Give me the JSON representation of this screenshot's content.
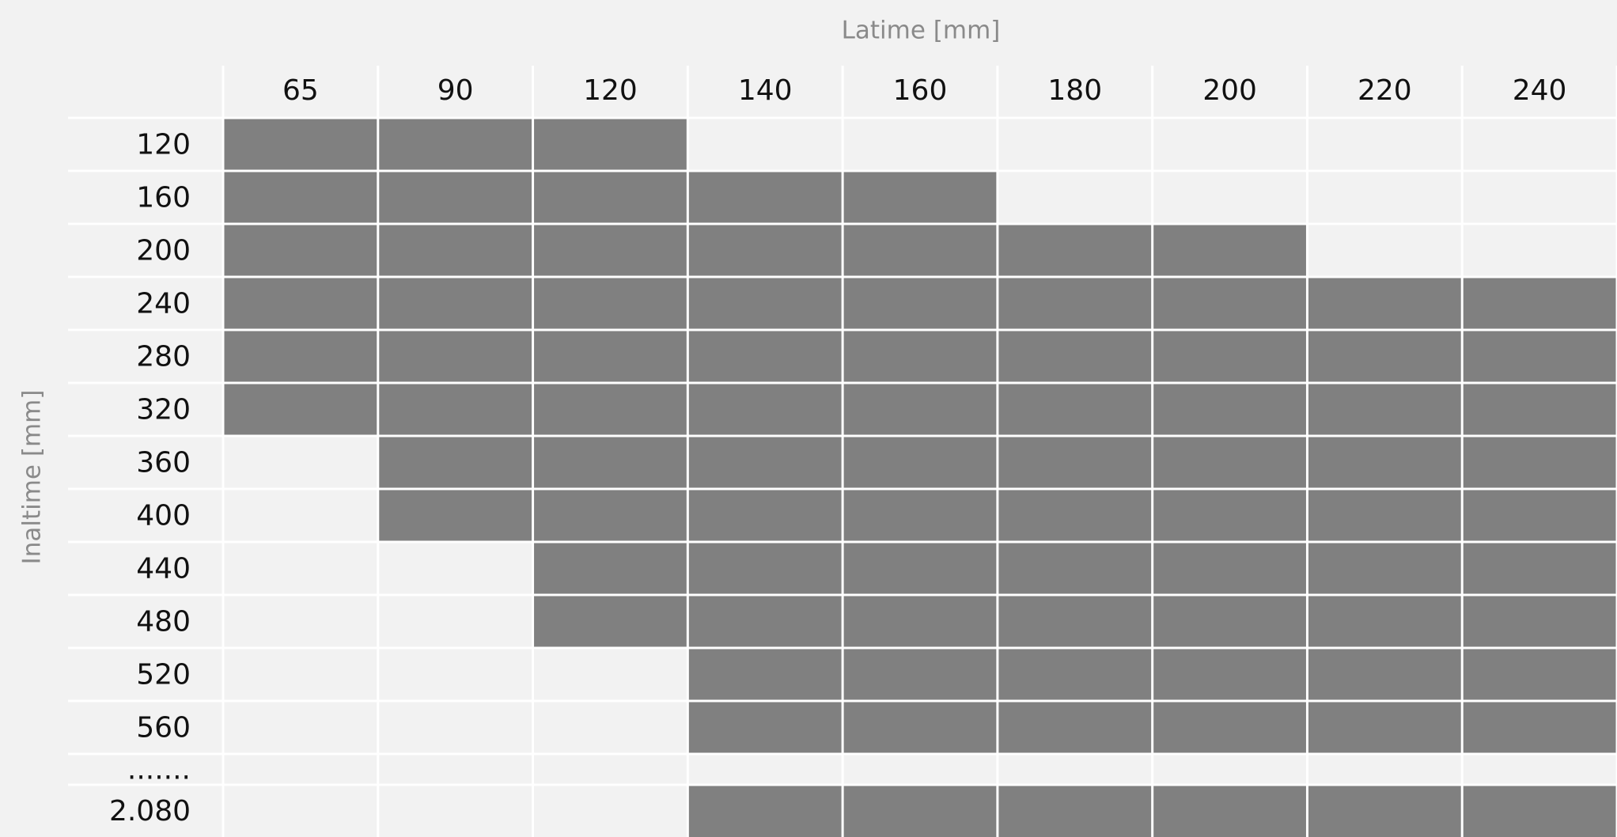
{
  "table": {
    "column_title": "Latime [mm]",
    "row_title": "Inaltime [mm]",
    "columns": [
      "65",
      "90",
      "120",
      "140",
      "160",
      "180",
      "200",
      "220",
      "240"
    ],
    "rows": [
      {
        "label": "120",
        "cells": [
          true,
          true,
          true,
          false,
          false,
          false,
          false,
          false,
          false
        ]
      },
      {
        "label": "160",
        "cells": [
          true,
          true,
          true,
          true,
          true,
          false,
          false,
          false,
          false
        ]
      },
      {
        "label": "200",
        "cells": [
          true,
          true,
          true,
          true,
          true,
          true,
          true,
          false,
          false
        ]
      },
      {
        "label": "240",
        "cells": [
          true,
          true,
          true,
          true,
          true,
          true,
          true,
          true,
          true
        ]
      },
      {
        "label": "280",
        "cells": [
          true,
          true,
          true,
          true,
          true,
          true,
          true,
          true,
          true
        ]
      },
      {
        "label": "320",
        "cells": [
          true,
          true,
          true,
          true,
          true,
          true,
          true,
          true,
          true
        ]
      },
      {
        "label": "360",
        "cells": [
          false,
          true,
          true,
          true,
          true,
          true,
          true,
          true,
          true
        ]
      },
      {
        "label": "400",
        "cells": [
          false,
          true,
          true,
          true,
          true,
          true,
          true,
          true,
          true
        ]
      },
      {
        "label": "440",
        "cells": [
          false,
          false,
          true,
          true,
          true,
          true,
          true,
          true,
          true
        ]
      },
      {
        "label": "480",
        "cells": [
          false,
          false,
          true,
          true,
          true,
          true,
          true,
          true,
          true
        ]
      },
      {
        "label": "520",
        "cells": [
          false,
          false,
          false,
          true,
          true,
          true,
          true,
          true,
          true
        ]
      },
      {
        "label": "560",
        "cells": [
          false,
          false,
          false,
          true,
          true,
          true,
          true,
          true,
          true
        ]
      },
      {
        "label": ".......",
        "cells": [
          false,
          false,
          false,
          false,
          false,
          false,
          false,
          false,
          false
        ]
      },
      {
        "label": "2.080",
        "cells": [
          false,
          false,
          false,
          true,
          true,
          true,
          true,
          true,
          true
        ]
      }
    ],
    "filled_color": "#808080",
    "empty_color": "#f2f2f2"
  }
}
